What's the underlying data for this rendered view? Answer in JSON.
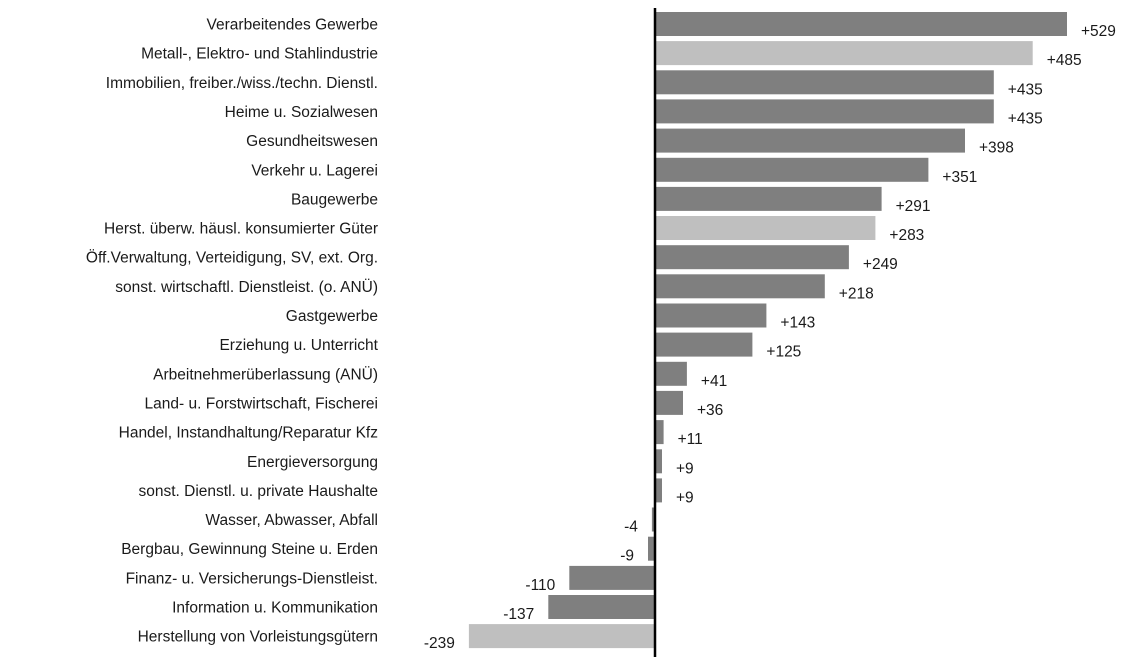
{
  "chart_data": {
    "type": "bar",
    "orientation": "horizontal",
    "title": "",
    "xlabel": "",
    "ylabel": "",
    "xlim": [
      -239,
      529
    ],
    "grid": false,
    "categories": [
      "Verarbeitendes Gewerbe",
      "Metall-, Elektro- und Stahlindustrie",
      "Immobilien, freiber./wiss./techn. Dienstl.",
      "Heime u. Sozialwesen",
      "Gesundheitswesen",
      "Verkehr u. Lagerei",
      "Baugewerbe",
      "Herst. überw. häusl. konsumierter Güter",
      "Öff.Verwaltung, Verteidigung, SV, ext. Org.",
      "sonst. wirtschaftl. Dienstleist. (o. ANÜ)",
      "Gastgewerbe",
      "Erziehung u. Unterricht",
      "Arbeitnehmerüberlassung (ANÜ)",
      "Land- u. Forstwirtschaft, Fischerei",
      "Handel, Instandhaltung/Reparatur Kfz",
      "Energieversorgung",
      "sonst. Dienstl. u. private Haushalte",
      "Wasser, Abwasser, Abfall",
      "Bergbau, Gewinnung Steine u. Erden",
      "Finanz- u. Versicherungs-Dienstleist.",
      "Information u. Kommunikation",
      "Herstellung von Vorleistungsgütern"
    ],
    "values": [
      529,
      485,
      435,
      435,
      398,
      351,
      291,
      283,
      249,
      218,
      143,
      125,
      41,
      36,
      11,
      9,
      9,
      -4,
      -9,
      -110,
      -137,
      -239
    ],
    "value_labels": [
      "+529",
      "+485",
      "+435",
      "+435",
      "+398",
      "+351",
      "+291",
      "+283",
      "+249",
      "+218",
      "+143",
      "+125",
      "+41",
      "+36",
      "+11",
      "+9",
      "+9",
      "-4",
      "-9",
      "-110",
      "-137",
      "-239"
    ],
    "highlighted": [
      false,
      true,
      false,
      false,
      false,
      false,
      false,
      true,
      false,
      false,
      false,
      false,
      false,
      false,
      false,
      false,
      false,
      false,
      false,
      false,
      false,
      true
    ],
    "colors": {
      "bar": "#7f7f7f",
      "bar_highlight": "#bfbfbf",
      "axis": "#000000",
      "text": "#1a1a1a"
    }
  }
}
